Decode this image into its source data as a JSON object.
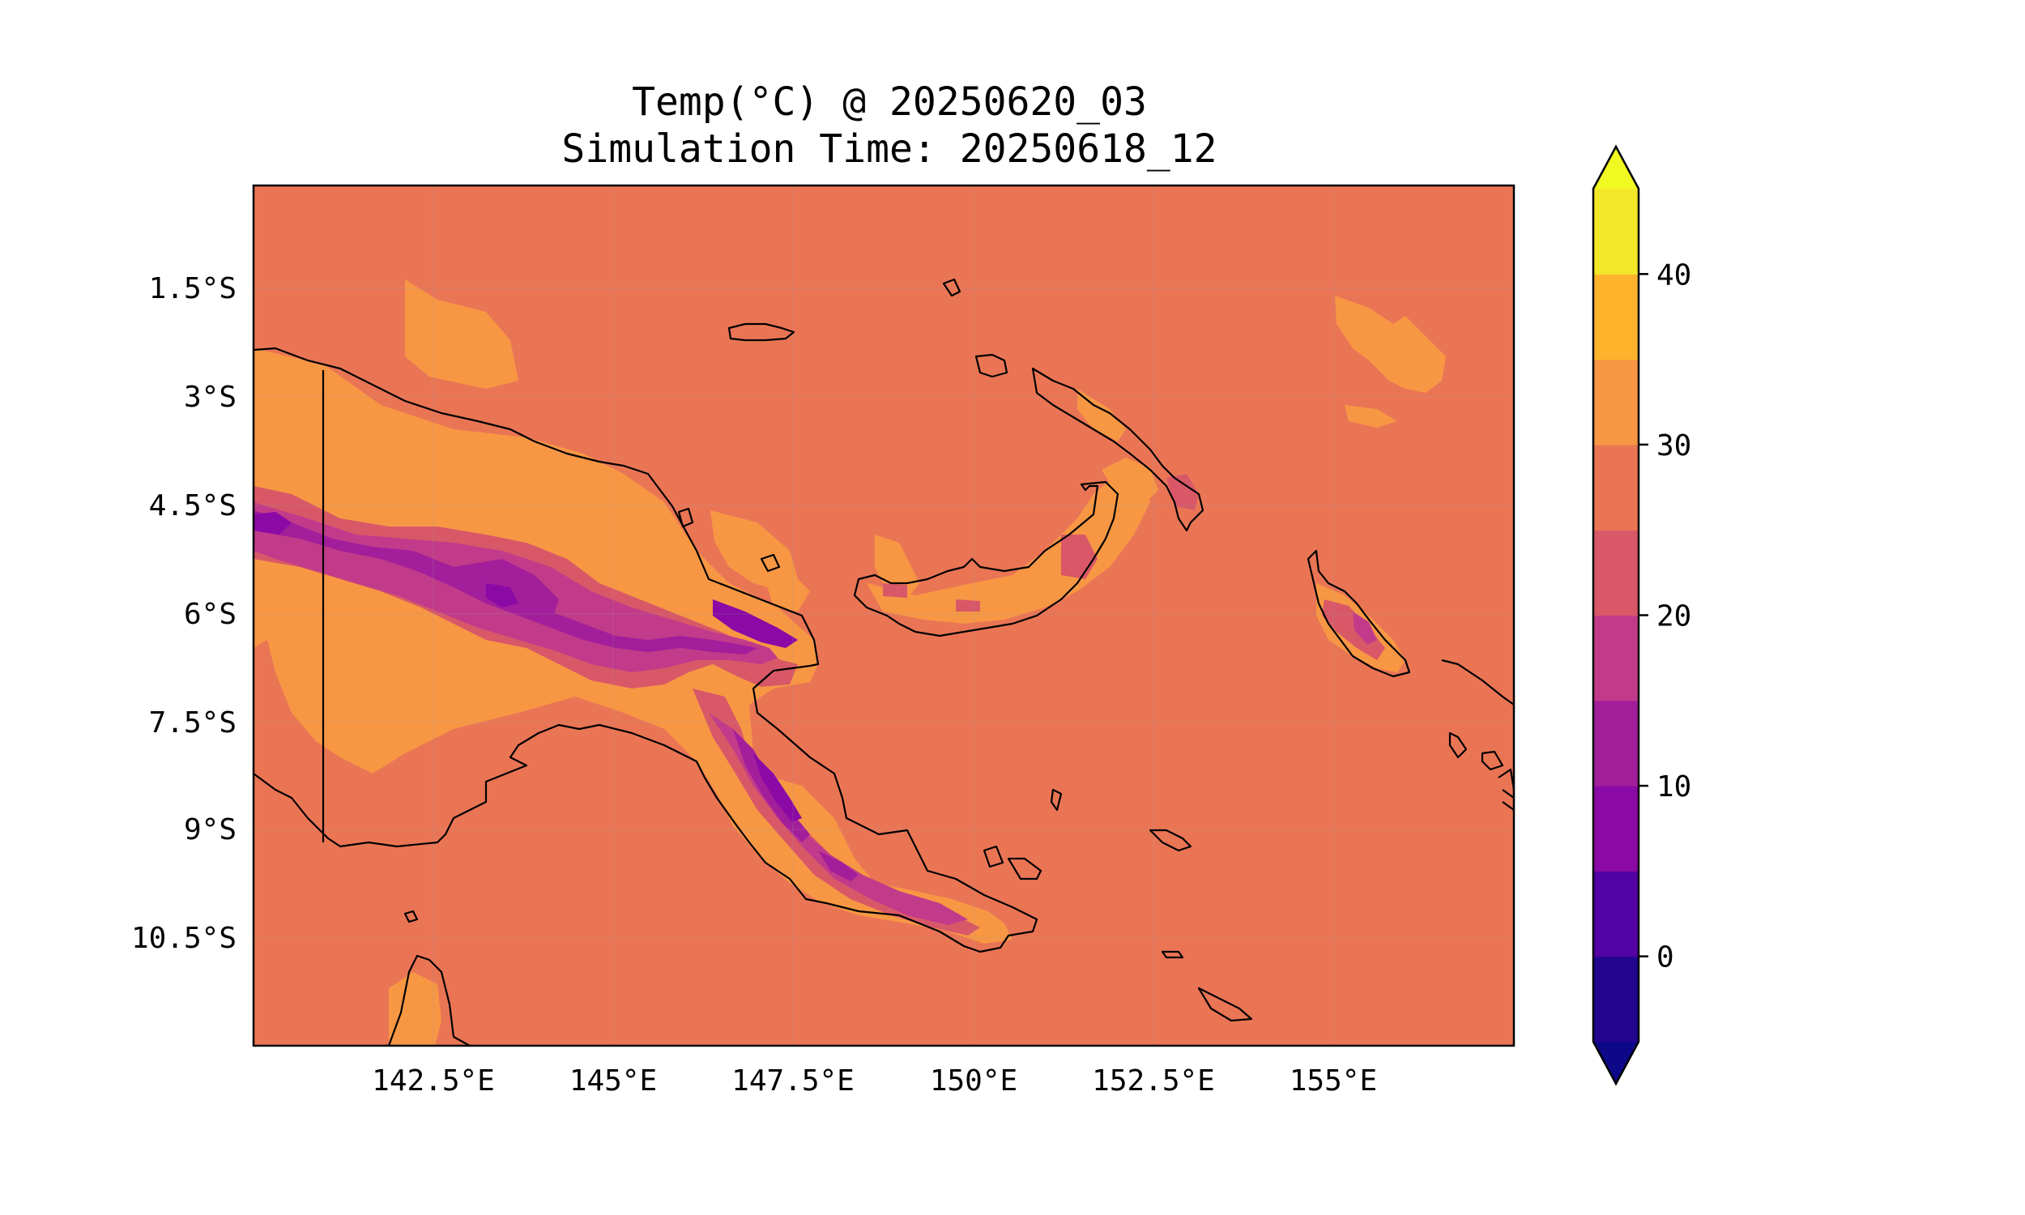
{
  "figure": {
    "title_line1": "Temp(°C) @ 20250620_03",
    "title_line2": "Simulation Time: 20250618_12"
  },
  "map": {
    "variable": "Temp(°C)",
    "lon_range": [
      140.0,
      157.5
    ],
    "lat_range": [
      -12.0,
      -0.1
    ],
    "lon_ticks": [
      {
        "value": 142.5,
        "label": "142.5°E"
      },
      {
        "value": 145.0,
        "label": "145°E"
      },
      {
        "value": 147.5,
        "label": "147.5°E"
      },
      {
        "value": 150.0,
        "label": "150°E"
      },
      {
        "value": 152.5,
        "label": "152.5°E"
      },
      {
        "value": 155.0,
        "label": "155°E"
      }
    ],
    "lat_ticks": [
      {
        "value": -1.5,
        "label": "1.5°S"
      },
      {
        "value": -3.0,
        "label": "3°S"
      },
      {
        "value": -4.5,
        "label": "4.5°S"
      },
      {
        "value": -6.0,
        "label": "6°S"
      },
      {
        "value": -7.5,
        "label": "7.5°S"
      },
      {
        "value": -9.0,
        "label": "9°S"
      },
      {
        "value": -10.5,
        "label": "10.5°S"
      }
    ],
    "colors": {
      "sea_band": "#ea7555",
      "warm_band": "#f79744",
      "mid_band": "#d95868",
      "cool_band": "#c23b8a",
      "cold_band": "#a31e9b",
      "coldest_band": "#8b09a5",
      "coastline": "#000000"
    },
    "grid": true
  },
  "colorbar": {
    "levels": [
      -5,
      0,
      5,
      10,
      15,
      20,
      25,
      30,
      35,
      40,
      45
    ],
    "colors": [
      "#220690",
      "#5302a3",
      "#8b09a5",
      "#a31e9b",
      "#c23b8a",
      "#d95868",
      "#ea7555",
      "#f79744",
      "#feb32c",
      "#f2e82a"
    ],
    "under_color": "#0d0887",
    "over_color": "#f0f921",
    "extend": "both",
    "ticks": [
      {
        "value": 0,
        "label": "0"
      },
      {
        "value": 10,
        "label": "10"
      },
      {
        "value": 20,
        "label": "20"
      },
      {
        "value": 30,
        "label": "30"
      },
      {
        "value": 40,
        "label": "40"
      }
    ]
  }
}
